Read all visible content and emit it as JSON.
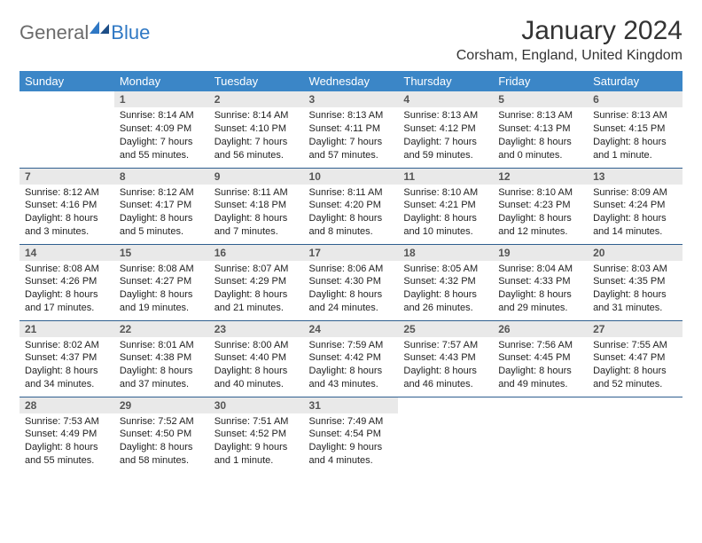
{
  "logo": {
    "text1": "General",
    "text2": "Blue"
  },
  "title": "January 2024",
  "location": "Corsham, England, United Kingdom",
  "colors": {
    "header_bg": "#3b86c7",
    "header_fg": "#ffffff",
    "daynum_bg": "#e9e9e9",
    "row_border": "#2f5f8f",
    "logo_gray": "#6b6b6b",
    "logo_blue": "#2f78c4"
  },
  "weekdays": [
    "Sunday",
    "Monday",
    "Tuesday",
    "Wednesday",
    "Thursday",
    "Friday",
    "Saturday"
  ],
  "weeks": [
    [
      null,
      {
        "n": "1",
        "sr": "Sunrise: 8:14 AM",
        "ss": "Sunset: 4:09 PM",
        "d1": "Daylight: 7 hours",
        "d2": "and 55 minutes."
      },
      {
        "n": "2",
        "sr": "Sunrise: 8:14 AM",
        "ss": "Sunset: 4:10 PM",
        "d1": "Daylight: 7 hours",
        "d2": "and 56 minutes."
      },
      {
        "n": "3",
        "sr": "Sunrise: 8:13 AM",
        "ss": "Sunset: 4:11 PM",
        "d1": "Daylight: 7 hours",
        "d2": "and 57 minutes."
      },
      {
        "n": "4",
        "sr": "Sunrise: 8:13 AM",
        "ss": "Sunset: 4:12 PM",
        "d1": "Daylight: 7 hours",
        "d2": "and 59 minutes."
      },
      {
        "n": "5",
        "sr": "Sunrise: 8:13 AM",
        "ss": "Sunset: 4:13 PM",
        "d1": "Daylight: 8 hours",
        "d2": "and 0 minutes."
      },
      {
        "n": "6",
        "sr": "Sunrise: 8:13 AM",
        "ss": "Sunset: 4:15 PM",
        "d1": "Daylight: 8 hours",
        "d2": "and 1 minute."
      }
    ],
    [
      {
        "n": "7",
        "sr": "Sunrise: 8:12 AM",
        "ss": "Sunset: 4:16 PM",
        "d1": "Daylight: 8 hours",
        "d2": "and 3 minutes."
      },
      {
        "n": "8",
        "sr": "Sunrise: 8:12 AM",
        "ss": "Sunset: 4:17 PM",
        "d1": "Daylight: 8 hours",
        "d2": "and 5 minutes."
      },
      {
        "n": "9",
        "sr": "Sunrise: 8:11 AM",
        "ss": "Sunset: 4:18 PM",
        "d1": "Daylight: 8 hours",
        "d2": "and 7 minutes."
      },
      {
        "n": "10",
        "sr": "Sunrise: 8:11 AM",
        "ss": "Sunset: 4:20 PM",
        "d1": "Daylight: 8 hours",
        "d2": "and 8 minutes."
      },
      {
        "n": "11",
        "sr": "Sunrise: 8:10 AM",
        "ss": "Sunset: 4:21 PM",
        "d1": "Daylight: 8 hours",
        "d2": "and 10 minutes."
      },
      {
        "n": "12",
        "sr": "Sunrise: 8:10 AM",
        "ss": "Sunset: 4:23 PM",
        "d1": "Daylight: 8 hours",
        "d2": "and 12 minutes."
      },
      {
        "n": "13",
        "sr": "Sunrise: 8:09 AM",
        "ss": "Sunset: 4:24 PM",
        "d1": "Daylight: 8 hours",
        "d2": "and 14 minutes."
      }
    ],
    [
      {
        "n": "14",
        "sr": "Sunrise: 8:08 AM",
        "ss": "Sunset: 4:26 PM",
        "d1": "Daylight: 8 hours",
        "d2": "and 17 minutes."
      },
      {
        "n": "15",
        "sr": "Sunrise: 8:08 AM",
        "ss": "Sunset: 4:27 PM",
        "d1": "Daylight: 8 hours",
        "d2": "and 19 minutes."
      },
      {
        "n": "16",
        "sr": "Sunrise: 8:07 AM",
        "ss": "Sunset: 4:29 PM",
        "d1": "Daylight: 8 hours",
        "d2": "and 21 minutes."
      },
      {
        "n": "17",
        "sr": "Sunrise: 8:06 AM",
        "ss": "Sunset: 4:30 PM",
        "d1": "Daylight: 8 hours",
        "d2": "and 24 minutes."
      },
      {
        "n": "18",
        "sr": "Sunrise: 8:05 AM",
        "ss": "Sunset: 4:32 PM",
        "d1": "Daylight: 8 hours",
        "d2": "and 26 minutes."
      },
      {
        "n": "19",
        "sr": "Sunrise: 8:04 AM",
        "ss": "Sunset: 4:33 PM",
        "d1": "Daylight: 8 hours",
        "d2": "and 29 minutes."
      },
      {
        "n": "20",
        "sr": "Sunrise: 8:03 AM",
        "ss": "Sunset: 4:35 PM",
        "d1": "Daylight: 8 hours",
        "d2": "and 31 minutes."
      }
    ],
    [
      {
        "n": "21",
        "sr": "Sunrise: 8:02 AM",
        "ss": "Sunset: 4:37 PM",
        "d1": "Daylight: 8 hours",
        "d2": "and 34 minutes."
      },
      {
        "n": "22",
        "sr": "Sunrise: 8:01 AM",
        "ss": "Sunset: 4:38 PM",
        "d1": "Daylight: 8 hours",
        "d2": "and 37 minutes."
      },
      {
        "n": "23",
        "sr": "Sunrise: 8:00 AM",
        "ss": "Sunset: 4:40 PM",
        "d1": "Daylight: 8 hours",
        "d2": "and 40 minutes."
      },
      {
        "n": "24",
        "sr": "Sunrise: 7:59 AM",
        "ss": "Sunset: 4:42 PM",
        "d1": "Daylight: 8 hours",
        "d2": "and 43 minutes."
      },
      {
        "n": "25",
        "sr": "Sunrise: 7:57 AM",
        "ss": "Sunset: 4:43 PM",
        "d1": "Daylight: 8 hours",
        "d2": "and 46 minutes."
      },
      {
        "n": "26",
        "sr": "Sunrise: 7:56 AM",
        "ss": "Sunset: 4:45 PM",
        "d1": "Daylight: 8 hours",
        "d2": "and 49 minutes."
      },
      {
        "n": "27",
        "sr": "Sunrise: 7:55 AM",
        "ss": "Sunset: 4:47 PM",
        "d1": "Daylight: 8 hours",
        "d2": "and 52 minutes."
      }
    ],
    [
      {
        "n": "28",
        "sr": "Sunrise: 7:53 AM",
        "ss": "Sunset: 4:49 PM",
        "d1": "Daylight: 8 hours",
        "d2": "and 55 minutes."
      },
      {
        "n": "29",
        "sr": "Sunrise: 7:52 AM",
        "ss": "Sunset: 4:50 PM",
        "d1": "Daylight: 8 hours",
        "d2": "and 58 minutes."
      },
      {
        "n": "30",
        "sr": "Sunrise: 7:51 AM",
        "ss": "Sunset: 4:52 PM",
        "d1": "Daylight: 9 hours",
        "d2": "and 1 minute."
      },
      {
        "n": "31",
        "sr": "Sunrise: 7:49 AM",
        "ss": "Sunset: 4:54 PM",
        "d1": "Daylight: 9 hours",
        "d2": "and 4 minutes."
      },
      null,
      null,
      null
    ]
  ]
}
